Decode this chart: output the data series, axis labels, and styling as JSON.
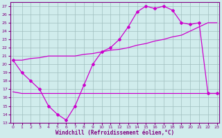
{
  "xlabel": "Windchill (Refroidissement éolien,°C)",
  "series": {
    "curve_main_x": [
      0,
      1,
      2,
      3,
      4,
      5,
      6,
      7,
      8,
      9,
      10,
      11,
      12,
      13,
      14,
      15,
      16,
      17,
      18,
      19,
      20,
      21,
      22,
      23
    ],
    "curve_main_y": [
      20.5,
      19.0,
      18.0,
      17.0,
      15.0,
      14.0,
      13.3,
      15.0,
      17.5,
      20.0,
      21.5,
      22.0,
      23.0,
      24.5,
      26.3,
      27.0,
      26.7,
      27.0,
      26.5,
      25.0,
      24.8,
      25.0,
      16.5,
      16.5
    ],
    "curve_flat_x": [
      0,
      1,
      2,
      3,
      4,
      5,
      6,
      7,
      8,
      9,
      10,
      11,
      12,
      13,
      14,
      15,
      16,
      17,
      18,
      19,
      20,
      21,
      22,
      23
    ],
    "curve_flat_y": [
      16.7,
      16.5,
      16.5,
      16.5,
      16.5,
      16.5,
      16.5,
      16.5,
      16.5,
      16.5,
      16.5,
      16.5,
      16.5,
      16.5,
      16.5,
      16.5,
      16.5,
      16.5,
      16.5,
      16.5,
      16.5,
      16.5,
      16.5,
      16.5
    ],
    "curve_diag_x": [
      0,
      1,
      2,
      3,
      4,
      5,
      6,
      7,
      8,
      9,
      10,
      11,
      12,
      13,
      14,
      15,
      16,
      17,
      18,
      19,
      20,
      21,
      22,
      23
    ],
    "curve_diag_y": [
      20.5,
      20.5,
      20.7,
      20.8,
      21.0,
      21.0,
      21.0,
      21.0,
      21.2,
      21.3,
      21.5,
      21.7,
      21.8,
      22.0,
      22.3,
      22.5,
      22.8,
      23.0,
      23.3,
      23.5,
      24.0,
      24.5,
      25.0,
      25.0
    ]
  },
  "color_main": "#800080",
  "color_line": "#cc00cc",
  "bg_color": "#d0ecec",
  "grid_color": "#a0bfbf",
  "ylim": [
    13,
    27.5
  ],
  "xlim": [
    -0.3,
    23.3
  ],
  "yticks": [
    13,
    14,
    15,
    16,
    17,
    18,
    19,
    20,
    21,
    22,
    23,
    24,
    25,
    26,
    27
  ],
  "xticks": [
    0,
    1,
    2,
    3,
    4,
    5,
    6,
    7,
    8,
    9,
    10,
    11,
    12,
    13,
    14,
    15,
    16,
    17,
    18,
    19,
    20,
    21,
    22,
    23
  ]
}
